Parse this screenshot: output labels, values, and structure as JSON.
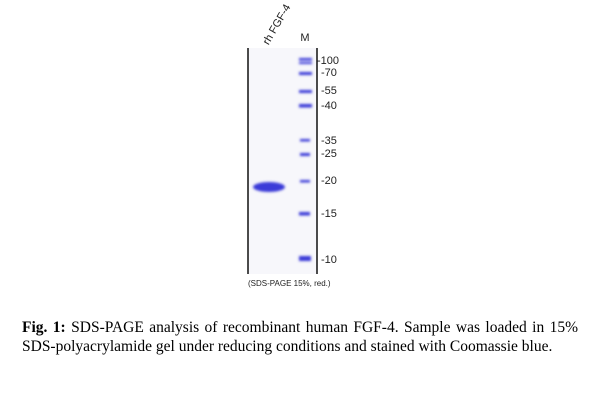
{
  "figure": {
    "lanes": [
      "rh FGF-4",
      "M"
    ],
    "markers": [
      "-100",
      "-70",
      "-55",
      "-40",
      "-35",
      "-25",
      "-20",
      "-15",
      "-10"
    ],
    "note": "(SDS-PAGE 15%, red.)"
  },
  "caption": {
    "label": "Fig. 1:",
    "text": "SDS-PAGE analysis of recombinant human FGF-4. Sample was loaded in 15% SDS-polyacrylamide gel under reducing conditions and stained with Coomassie blue."
  }
}
